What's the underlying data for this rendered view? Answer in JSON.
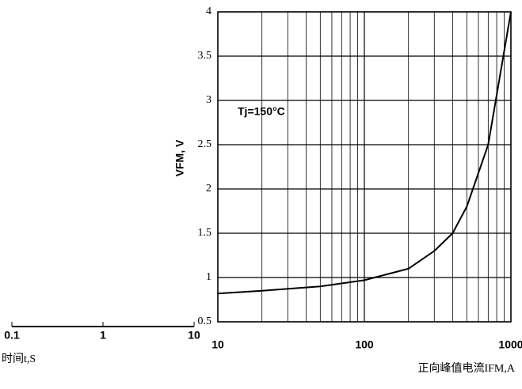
{
  "chart_data": [
    {
      "type": "line",
      "y_label": "VFM, V",
      "x_label": "正向峰值电流IFM,A",
      "annotation": "Tj=150°C",
      "log_x": true,
      "grid": true,
      "color": "#000000",
      "x": [
        10,
        20,
        50,
        100,
        200,
        300,
        400,
        500,
        700,
        1000
      ],
      "values": [
        0.82,
        0.85,
        0.9,
        0.97,
        1.1,
        1.3,
        1.5,
        1.8,
        2.5,
        4.0
      ],
      "xlim": [
        10,
        1000
      ],
      "xticks": [
        10,
        100,
        1000
      ],
      "ylim": [
        0.5,
        4
      ],
      "yticks": [
        0.5,
        1,
        1.5,
        2,
        2.5,
        3,
        3.5,
        4
      ]
    },
    {
      "type": "axis",
      "x_label": "时间t,S",
      "log_x": true,
      "xlim": [
        0.1,
        10
      ],
      "xticks": [
        0.1,
        1,
        10
      ]
    }
  ]
}
